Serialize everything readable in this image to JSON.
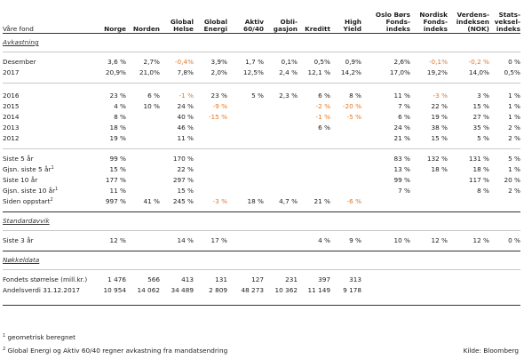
{
  "columns": [
    {
      "key": "fund",
      "label": ""
    },
    {
      "key": "c1",
      "label": "Norge"
    },
    {
      "key": "c2",
      "label": "Norden"
    },
    {
      "key": "c3",
      "label": "Global Helse"
    },
    {
      "key": "c4",
      "label": "Global Energi"
    },
    {
      "key": "c5",
      "label": "Aktiv 60/40"
    },
    {
      "key": "c6",
      "label": "Obli- gasjon"
    },
    {
      "key": "c7",
      "label": "Kreditt"
    },
    {
      "key": "c8",
      "label": "High Yield"
    },
    {
      "key": "c9",
      "label": "Oslo Børs Fonds- indeks"
    },
    {
      "key": "c10",
      "label": "Nordisk Fonds- indeks"
    },
    {
      "key": "c11",
      "label": "Verdens- indeksen (NOK)"
    },
    {
      "key": "c12",
      "label": "Stats- veksel- indeks"
    }
  ],
  "header_first": "Våre fond",
  "sections": {
    "avkastning": "Avkastning",
    "standardavvik": "Standardavvik",
    "nokkeldata": "Nøkkeldata"
  },
  "rows": {
    "desember": [
      "Desember",
      "3,6 %",
      "2,7%",
      "-0,4%",
      "3,9%",
      "1,7 %",
      "0,1%",
      "0,5%",
      "0,9%",
      "2,6%",
      "-0,1%",
      "-0,2 %",
      "0 %"
    ],
    "y2017": [
      "2017",
      "20,9%",
      "21,0%",
      "7,8%",
      "2,0%",
      "12,5%",
      "2,4 %",
      "12,1 %",
      "14,2%",
      "17,0%",
      "19,2%",
      "14,0%",
      "0,5%"
    ],
    "y2016": [
      "2016",
      "23 %",
      "6 %",
      "-1 %",
      "23 %",
      "5 %",
      "2,3 %",
      "6 %",
      "8 %",
      "11 %",
      "-3 %",
      "3 %",
      "1 %"
    ],
    "y2015": [
      "2015",
      "4 %",
      "10 %",
      "24 %",
      "-9 %",
      "",
      "",
      "-2 %",
      "-20 %",
      "7 %",
      "22 %",
      "15 %",
      "1 %"
    ],
    "y2014": [
      "2014",
      "8 %",
      "",
      "40 %",
      "-15 %",
      "",
      "",
      "-1 %",
      "-5 %",
      "6 %",
      "19 %",
      "27 %",
      "1 %"
    ],
    "y2013": [
      "2013",
      "18 %",
      "",
      "46 %",
      "",
      "",
      "",
      "6 %",
      "",
      "24 %",
      "38 %",
      "35 %",
      "2 %"
    ],
    "y2012": [
      "2012",
      "19 %",
      "",
      "11 %",
      "",
      "",
      "",
      "",
      "",
      "21 %",
      "15 %",
      "5 %",
      "2 %"
    ],
    "siste5": [
      "Siste 5 år",
      "99 %",
      "",
      "170 %",
      "",
      "",
      "",
      "",
      "",
      "83 %",
      "132 %",
      "131 %",
      "5 %"
    ],
    "gjsn5": [
      "Gjsn. siste 5 år",
      "15 %",
      "",
      "22 %",
      "",
      "",
      "",
      "",
      "",
      "13 %",
      "18 %",
      "18 %",
      "1 %"
    ],
    "siste10": [
      "Siste 10 år",
      "177 %",
      "",
      "297 %",
      "",
      "",
      "",
      "",
      "",
      "99 %",
      "",
      "117 %",
      "20 %"
    ],
    "gjsn10": [
      "Gjsn. siste 10 år",
      "11 %",
      "",
      "15 %",
      "",
      "",
      "",
      "",
      "",
      "7 %",
      "",
      "8 %",
      "2 %"
    ],
    "oppstart": [
      "Siden oppstart",
      "997 %",
      "41 %",
      "245 %",
      "-3 %",
      "18 %",
      "4,7 %",
      "21 %",
      "-6 %",
      "",
      "",
      "",
      ""
    ],
    "sd3": [
      "Siste 3 år",
      "12 %",
      "",
      "14 %",
      "17 %",
      "",
      "",
      "4 %",
      "9 %",
      "10 %",
      "12 %",
      "12 %",
      "0 %"
    ],
    "storrelse": [
      "Fondets størrelse (mill.kr.)",
      "1 476",
      "566",
      "413",
      "131",
      "127",
      "231",
      "397",
      "313",
      "",
      "",
      "",
      ""
    ],
    "andelsverdi": [
      "Andelsverdi 31.12.2017",
      "10 954",
      "14 062",
      "34 489",
      "2 809",
      "48 273",
      "10 362",
      "11 149",
      "9 178",
      "",
      "",
      "",
      ""
    ]
  },
  "superscripts": {
    "gjsn5": "1",
    "gjsn10": "1",
    "oppstart": "2"
  },
  "footnotes": {
    "fn1_mark": "1",
    "fn1": "geometrisk beregnet",
    "fn2_mark": "2",
    "fn2": "Global Energi og Aktiv 60/40 regner avkastning fra mandatsendring",
    "source": "Kilde: Bloomberg"
  },
  "colors": {
    "negative": "#e87722",
    "text": "#1e1e1e"
  }
}
